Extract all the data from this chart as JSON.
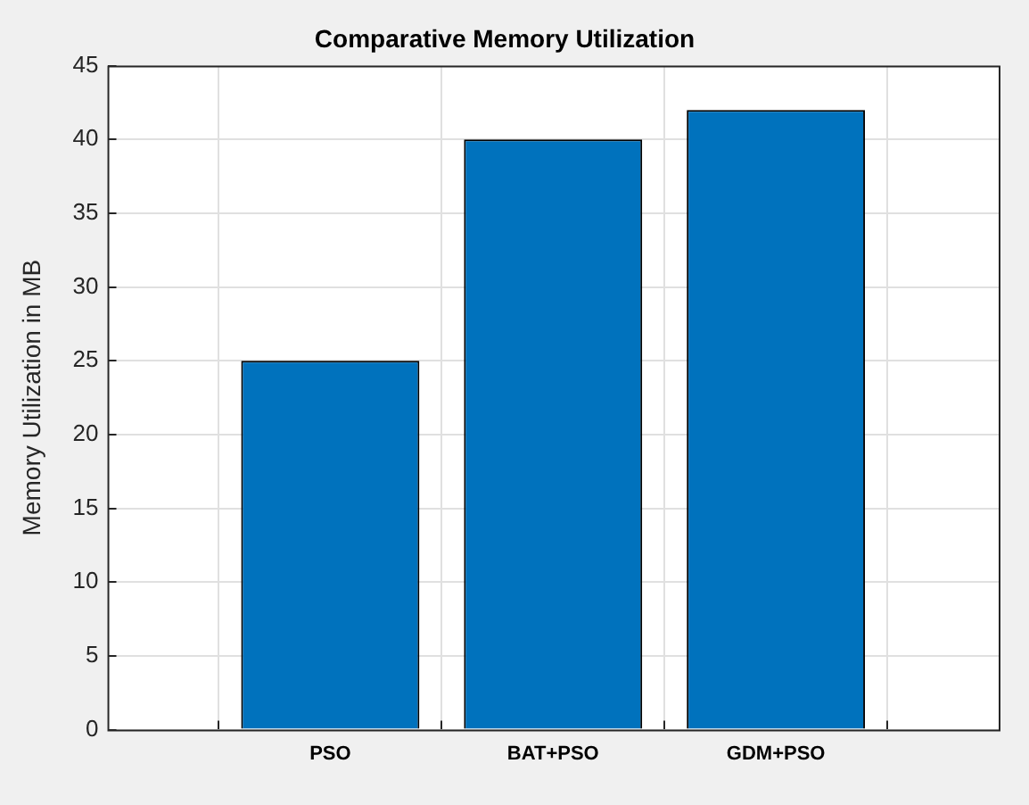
{
  "chart_data": {
    "type": "bar",
    "title": "Comparative Memory Utilization",
    "ylabel": "Memory Utilization in MB",
    "categories": [
      null,
      "PSO",
      "BAT+PSO",
      "GDM+PSO",
      null
    ],
    "values": [
      null,
      25,
      40,
      42,
      null
    ],
    "color": "#0072bd",
    "ylim": [
      0,
      45
    ],
    "yticks": [
      0,
      5,
      10,
      15,
      20,
      25,
      30,
      35,
      40,
      45
    ],
    "grid": true,
    "legend": false
  }
}
